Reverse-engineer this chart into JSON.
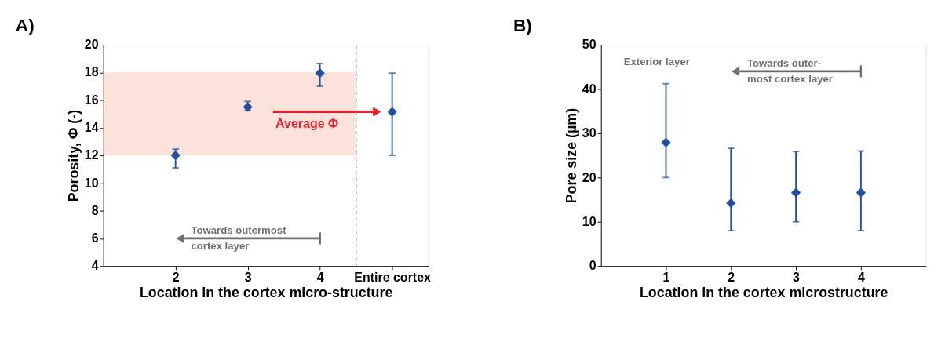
{
  "chart_data": [
    {
      "type": "scatter",
      "title": "A)",
      "xlabel": "Location in the cortex micro-structure",
      "ylabel": "Porosity, Φ (-)",
      "x": [
        2,
        3,
        4,
        5
      ],
      "values": [
        12.0,
        15.5,
        17.95,
        15.15
      ],
      "errors": [
        [
          11.1,
          12.45
        ],
        [
          15.25,
          15.9
        ],
        [
          17.0,
          18.65
        ],
        [
          12.0,
          17.95
        ]
      ],
      "color": "#2150a0",
      "marker": "diamond",
      "grid": false,
      "xlim": [
        1,
        5.5
      ],
      "xticks": [
        2,
        3,
        4,
        {
          "value": 5,
          "label": "Entire cortex"
        }
      ],
      "ylim": [
        4,
        20
      ],
      "yticks": [
        4,
        6,
        8,
        10,
        12,
        14,
        16,
        18,
        20
      ],
      "ref_lines": [
        {
          "axis": "x",
          "value": 4.5,
          "color": "#000000",
          "line_style": "dashed"
        }
      ],
      "bands": [
        {
          "axis": "y",
          "from": 12,
          "to": 18,
          "color": "#fbe3dc"
        }
      ],
      "annotations": [
        "Average Φ",
        "Towards outermost cortex layer"
      ]
    },
    {
      "type": "scatter",
      "title": "B)",
      "xlabel": "Location in the cortex microstructure",
      "ylabel": "Pore size (µm)",
      "x": [
        1,
        2,
        3,
        4
      ],
      "values": [
        27.9,
        14.2,
        16.6,
        16.6
      ],
      "errors": [
        [
          20.0,
          41.2
        ],
        [
          8.0,
          26.6
        ],
        [
          10.0,
          25.9
        ],
        [
          8.0,
          26.0
        ]
      ],
      "color": "#2150a0",
      "marker": "diamond",
      "grid": false,
      "xlim": [
        0,
        5
      ],
      "xticks": [
        1,
        2,
        3,
        4
      ],
      "ylim": [
        0,
        50
      ],
      "yticks": [
        0,
        10,
        20,
        30,
        40,
        50
      ],
      "annotations": [
        "Exterior layer",
        "Towards outer-most cortex layer"
      ]
    }
  ]
}
